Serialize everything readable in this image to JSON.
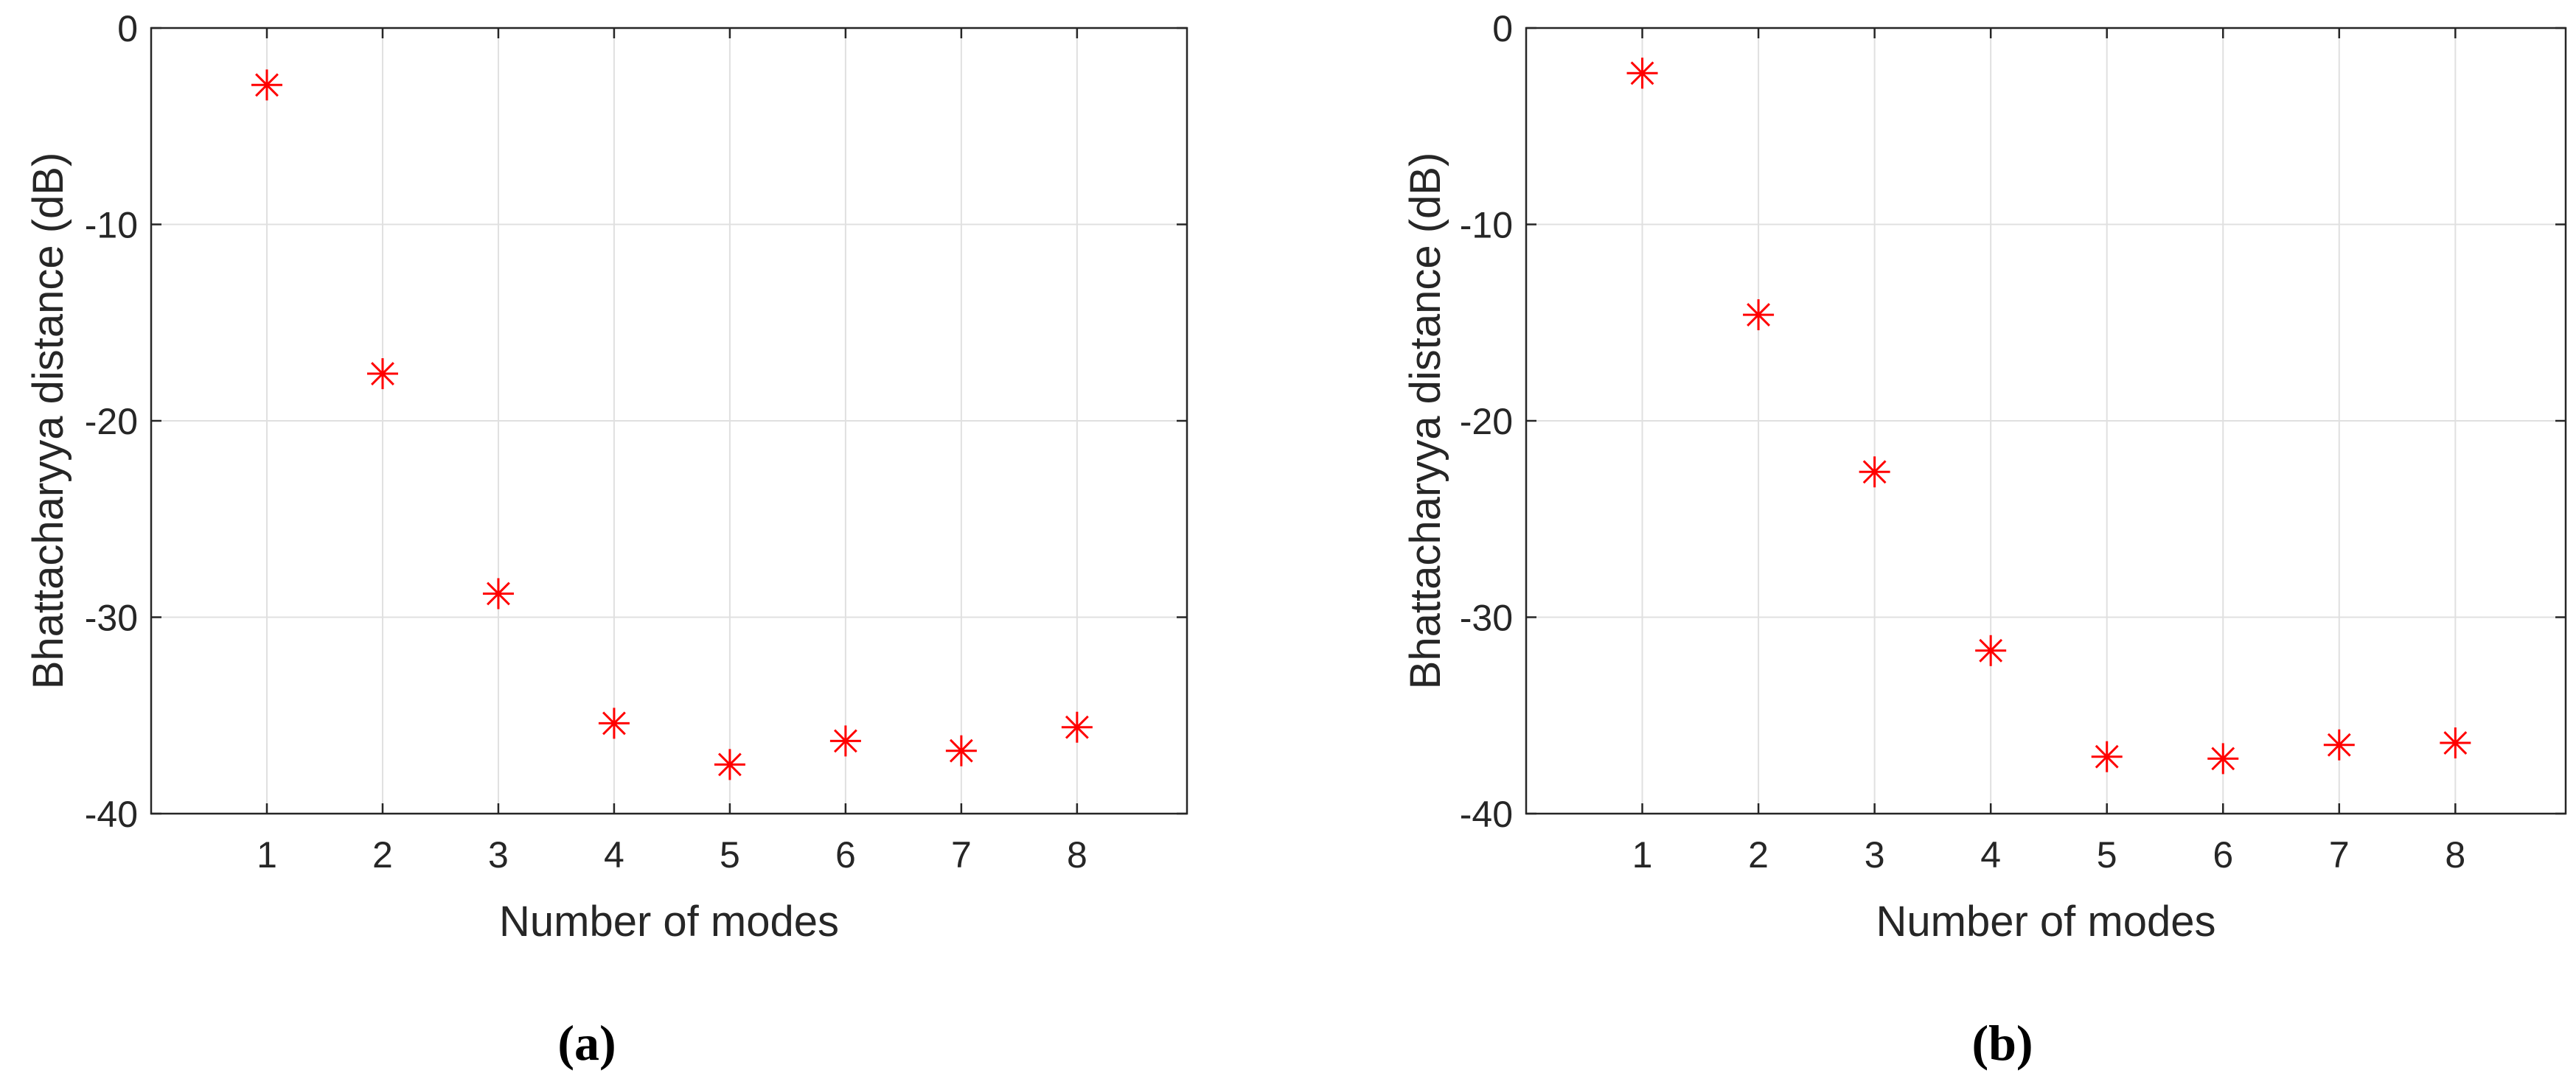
{
  "chart_data": [
    {
      "type": "scatter",
      "panel_label": "(a)",
      "xlabel": "Number of modes",
      "ylabel": "Bhattacharyya distance (dB)",
      "xlim": [
        0,
        8.95
      ],
      "ylim": [
        -40,
        0
      ],
      "xticks": [
        "1",
        "2",
        "3",
        "4",
        "5",
        "6",
        "7",
        "8"
      ],
      "yticks": [
        "0",
        "-10",
        "-20",
        "-30",
        "-40"
      ],
      "grid": true,
      "marker": "asterisk",
      "marker_color": "#ff0000",
      "series": [
        {
          "x": [
            1,
            2,
            3,
            4,
            5,
            6,
            7,
            8
          ],
          "values": [
            -2.9,
            -17.6,
            -28.8,
            -35.4,
            -37.5,
            -36.3,
            -36.8,
            -35.6
          ]
        }
      ]
    },
    {
      "type": "scatter",
      "panel_label": "(b)",
      "xlabel": "Number of modes",
      "ylabel": "Bhattacharyya distance (dB)",
      "xlim": [
        0,
        8.95
      ],
      "ylim": [
        -40,
        0
      ],
      "xticks": [
        "1",
        "2",
        "3",
        "4",
        "5",
        "6",
        "7",
        "8"
      ],
      "yticks": [
        "0",
        "-10",
        "-20",
        "-30",
        "-40"
      ],
      "grid": true,
      "marker": "asterisk",
      "marker_color": "#ff0000",
      "series": [
        {
          "x": [
            1,
            2,
            3,
            4,
            5,
            6,
            7,
            8
          ],
          "values": [
            -2.3,
            -14.6,
            -22.6,
            -31.7,
            -37.1,
            -37.2,
            -36.5,
            -36.4
          ]
        }
      ]
    }
  ]
}
